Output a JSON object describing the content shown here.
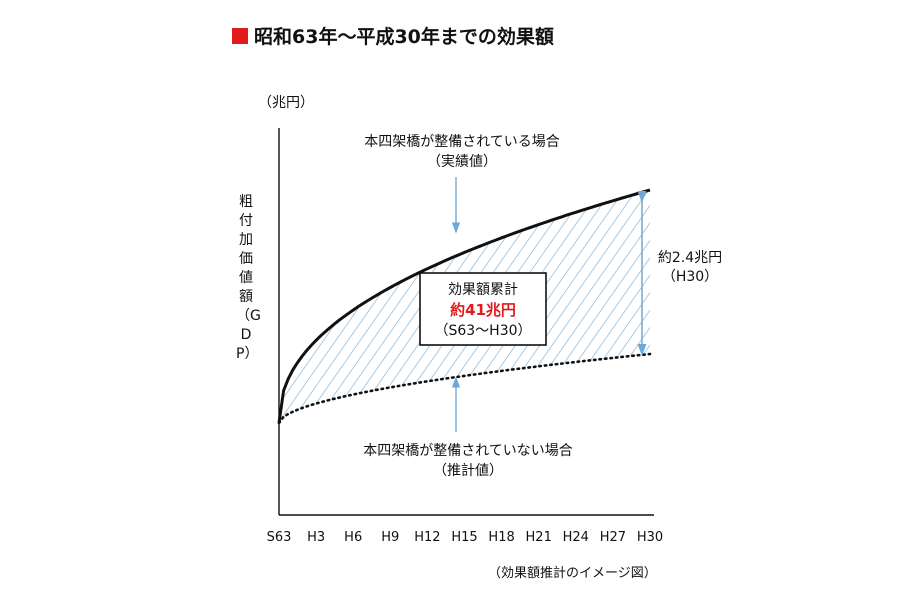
{
  "title": "昭和63年～平成30年までの効果額",
  "caption": "（効果額推計のイメージ図）",
  "chart_data": {
    "type": "area",
    "title": "昭和63年～平成30年までの効果額",
    "ylabel": "粗付加価値額（GDP）",
    "yunit": "（兆円）",
    "xlabel": "",
    "categories": [
      "S63",
      "H3",
      "H6",
      "H9",
      "H12",
      "H15",
      "H18",
      "H21",
      "H24",
      "H27",
      "H30"
    ],
    "series": [
      {
        "name": "本四架橋が整備されている場合",
        "sub": "（実績値）",
        "style": "solid"
      },
      {
        "name": "本四架橋が整備されていない場合",
        "sub": "（推計値）",
        "style": "dotted"
      }
    ],
    "gap_label": "約2.4兆円",
    "gap_sub": "（H30）",
    "box_line1": "効果額累計",
    "box_line2": "約41兆円",
    "box_line3": "（S63～H30）",
    "grid": false,
    "colors": {
      "hatch": "#6fa8d6",
      "accent": "#e31a1c",
      "arrow": "#6fa8d6"
    }
  }
}
